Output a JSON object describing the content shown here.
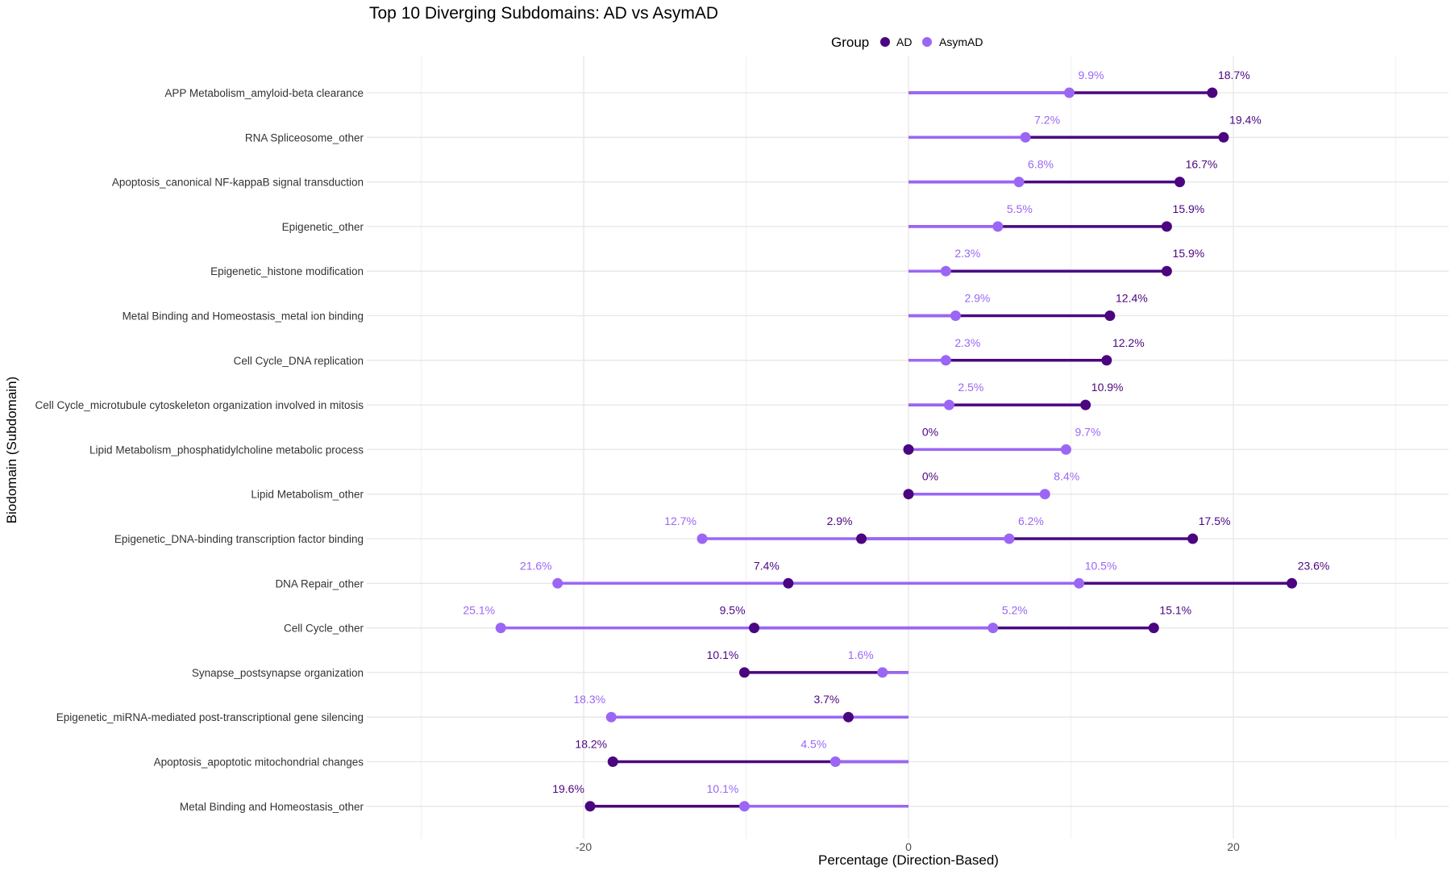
{
  "chart_data": {
    "type": "dumbbell",
    "title": "Top 10 Diverging Subdomains: AD vs AsymAD",
    "xlabel": "Percentage (Direction-Based)",
    "ylabel": "Biodomain (Subdomain)",
    "xlim": [
      -30,
      33
    ],
    "x_ticks": [
      -20,
      0,
      20
    ],
    "x_minor_grid": [
      -30,
      -10,
      10,
      30
    ],
    "grid": true,
    "legend": {
      "title": "Group",
      "placement": "top",
      "entries": [
        {
          "name": "AD",
          "color": "#4B0580"
        },
        {
          "name": "AsymAD",
          "color": "#9B66F5"
        }
      ]
    },
    "label_format": "absolute value with %",
    "rows": [
      {
        "name": "APP Metabolism_amyloid-beta clearance",
        "AD": [
          18.7
        ],
        "AsymAD": [
          9.9
        ]
      },
      {
        "name": "RNA Spliceosome_other",
        "AD": [
          19.4
        ],
        "AsymAD": [
          7.2
        ]
      },
      {
        "name": "Apoptosis_canonical NF-kappaB signal transduction",
        "AD": [
          16.7
        ],
        "AsymAD": [
          6.8
        ]
      },
      {
        "name": "Epigenetic_other",
        "AD": [
          15.9
        ],
        "AsymAD": [
          5.5
        ]
      },
      {
        "name": "Epigenetic_histone modification",
        "AD": [
          15.9
        ],
        "AsymAD": [
          2.3
        ]
      },
      {
        "name": "Metal Binding and Homeostasis_metal ion binding",
        "AD": [
          12.4
        ],
        "AsymAD": [
          2.9
        ]
      },
      {
        "name": "Cell Cycle_DNA replication",
        "AD": [
          12.2
        ],
        "AsymAD": [
          2.3
        ]
      },
      {
        "name": "Cell Cycle_microtubule cytoskeleton organization involved in mitosis",
        "AD": [
          10.9
        ],
        "AsymAD": [
          2.5
        ]
      },
      {
        "name": "Lipid Metabolism_phosphatidylcholine metabolic process",
        "AD": [
          0
        ],
        "AsymAD": [
          9.7
        ]
      },
      {
        "name": "Lipid Metabolism_other",
        "AD": [
          0
        ],
        "AsymAD": [
          8.4
        ]
      },
      {
        "name": "Epigenetic_DNA-binding transcription factor binding",
        "AD": [
          17.5,
          -2.9
        ],
        "AsymAD": [
          6.2,
          -12.7
        ]
      },
      {
        "name": "DNA Repair_other",
        "AD": [
          23.6,
          -7.4
        ],
        "AsymAD": [
          10.5,
          -21.6
        ]
      },
      {
        "name": "Cell Cycle_other",
        "AD": [
          15.1,
          -9.5
        ],
        "AsymAD": [
          5.2,
          -25.1
        ]
      },
      {
        "name": "Synapse_postsynapse organization",
        "AD": [
          -10.1
        ],
        "AsymAD": [
          -1.6
        ]
      },
      {
        "name": "Epigenetic_miRNA-mediated post-transcriptional gene silencing",
        "AD": [
          -3.7
        ],
        "AsymAD": [
          -18.3
        ]
      },
      {
        "name": "Apoptosis_apoptotic mitochondrial changes",
        "AD": [
          -18.2
        ],
        "AsymAD": [
          -4.5
        ]
      },
      {
        "name": "Metal Binding and Homeostasis_other",
        "AD": [
          -19.6
        ],
        "AsymAD": [
          -10.1
        ]
      }
    ]
  }
}
